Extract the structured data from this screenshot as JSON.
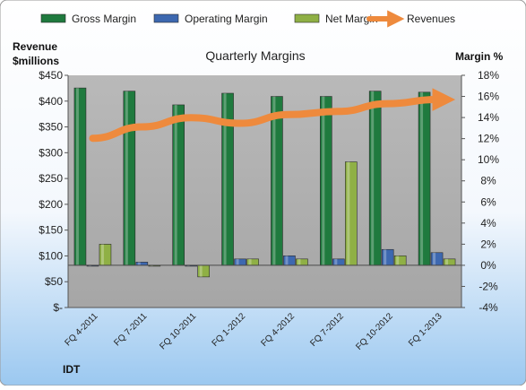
{
  "chart_data": {
    "type": "bar",
    "title": "Quarterly Margins",
    "company_label": "IDT",
    "left_axis_title_line1": "Revenue",
    "left_axis_title_line2": "$millions",
    "right_axis_title": "Margin %",
    "categories": [
      "FQ 4-2011",
      "FQ 7-2011",
      "FQ 10-2011",
      "FQ 1-2012",
      "FQ 4-2012",
      "FQ 7-2012",
      "FQ 10-2012",
      "FQ 1-2013"
    ],
    "left_axis": {
      "min": 0,
      "max": 450,
      "step": 50,
      "ticks": [
        "$-",
        "$50",
        "$100",
        "$150",
        "$200",
        "$250",
        "$300",
        "$350",
        "$400",
        "$450"
      ]
    },
    "right_axis": {
      "min": -4,
      "max": 18,
      "step": 2,
      "ticks": [
        "-4%",
        "-2%",
        "0%",
        "2%",
        "4%",
        "6%",
        "8%",
        "10%",
        "12%",
        "14%",
        "16%",
        "18%"
      ]
    },
    "series": [
      {
        "name": "Gross Margin",
        "kind": "bar",
        "axis": "right",
        "unit": "%",
        "color": "#1f7a3e",
        "values": [
          16.8,
          16.5,
          15.2,
          16.3,
          16.0,
          16.0,
          16.5,
          16.4
        ]
      },
      {
        "name": "Operating Margin",
        "kind": "bar",
        "axis": "right",
        "unit": "%",
        "color": "#3d68b0",
        "values": [
          0.0,
          0.3,
          0.0,
          0.6,
          0.9,
          0.6,
          1.5,
          1.2
        ]
      },
      {
        "name": "Net Margin",
        "kind": "bar",
        "axis": "right",
        "unit": "%",
        "color": "#8fb045",
        "values": [
          2.0,
          0.0,
          -1.1,
          0.6,
          0.6,
          9.8,
          0.9,
          0.6
        ]
      },
      {
        "name": "Revenues",
        "kind": "line",
        "axis": "left",
        "unit": "$M",
        "color": "#ee8a3d",
        "values": [
          328,
          350,
          368,
          357,
          374,
          380,
          395,
          403
        ]
      }
    ],
    "legend_position": "top",
    "grid": false
  }
}
